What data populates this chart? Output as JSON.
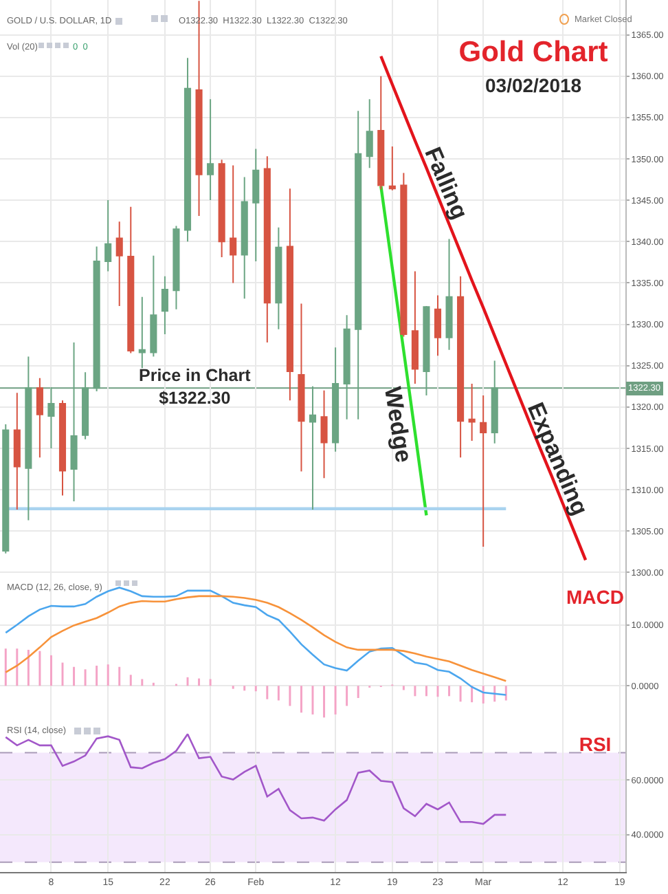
{
  "chart_data": [
    {
      "type": "candlestick",
      "title": "Gold Chart",
      "subtitle": "03/02/2018",
      "categories": [
        null,
        null,
        null,
        null,
        null,
        null,
        null,
        null,
        null,
        null,
        null,
        null,
        null,
        null,
        null,
        null,
        null,
        null,
        null,
        null,
        null,
        null,
        null,
        null,
        null,
        null,
        null,
        null,
        null,
        null,
        null,
        null,
        null,
        null,
        null,
        null,
        null,
        null,
        null,
        null,
        null,
        null,
        null,
        null,
        null,
        null,
        null,
        null,
        null,
        null,
        null,
        null,
        null,
        null,
        null
      ],
      "ohlc": [
        [
          1302.6,
          1317.9,
          1302.3,
          1317.2
        ],
        [
          1317.2,
          1321.7,
          1307.6,
          1312.8
        ],
        [
          1312.6,
          1326.1,
          1306.3,
          1322.3
        ],
        [
          1322.3,
          1323.5,
          1313.9,
          1319.1
        ],
        [
          1318.9,
          1322.4,
          1315.0,
          1320.4
        ],
        [
          1320.4,
          1320.8,
          1309.3,
          1312.3
        ],
        [
          1312.5,
          1327.8,
          1308.6,
          1316.5
        ],
        [
          1316.6,
          1324.2,
          1316.1,
          1322.3
        ],
        [
          1322.3,
          1339.4,
          1321.9,
          1337.6
        ],
        [
          1337.6,
          1345.0,
          1336.4,
          1339.7
        ],
        [
          1340.4,
          1342.4,
          1332.2,
          1338.3
        ],
        [
          1338.2,
          1344.2,
          1326.5,
          1326.8
        ],
        [
          1326.6,
          1333.3,
          1324.7,
          1326.9
        ],
        [
          1326.6,
          1338.3,
          1326.1,
          1331.1
        ],
        [
          1331.6,
          1335.8,
          1328.8,
          1334.2
        ],
        [
          1334.1,
          1341.9,
          1331.8,
          1341.5
        ],
        [
          1341.4,
          1362.2,
          1340.0,
          1358.5
        ],
        [
          1358.3,
          1369.1,
          1343.1,
          1348.1
        ],
        [
          1348.1,
          1357.2,
          1345.0,
          1349.4
        ],
        [
          1349.4,
          1349.9,
          1338.1,
          1340.0
        ],
        [
          1340.4,
          1349.2,
          1335.0,
          1338.4
        ],
        [
          1338.4,
          1347.8,
          1333.1,
          1344.8
        ],
        [
          1344.7,
          1351.2,
          1337.6,
          1348.6
        ],
        [
          1348.8,
          1350.3,
          1327.8,
          1332.6
        ],
        [
          1332.6,
          1341.7,
          1329.4,
          1339.3
        ],
        [
          1339.4,
          1346.4,
          1320.8,
          1324.3
        ],
        [
          1323.9,
          1332.5,
          1312.2,
          1318.3
        ],
        [
          1318.2,
          1322.5,
          1307.6,
          1319.0
        ],
        [
          1318.8,
          1322.0,
          1311.4,
          1315.7
        ],
        [
          1315.7,
          1327.2,
          1314.6,
          1322.8
        ],
        [
          1322.8,
          1331.1,
          1318.5,
          1329.4
        ],
        [
          1329.4,
          1355.8,
          1318.5,
          1350.6
        ],
        [
          1350.3,
          1357.2,
          1348.9,
          1353.3
        ],
        [
          1353.4,
          1360.0,
          1346.3,
          1346.8
        ],
        [
          1346.7,
          1351.5,
          1346.2,
          1346.4
        ],
        [
          1346.8,
          1348.3,
          1328.5,
          1328.8
        ],
        [
          1329.2,
          1336.4,
          1322.8,
          1324.6
        ],
        [
          1324.3,
          1332.2,
          1321.4,
          1332.1
        ],
        [
          1331.8,
          1333.5,
          1326.2,
          1328.4
        ],
        [
          1328.4,
          1340.3,
          1326.9,
          1333.3
        ],
        [
          1333.3,
          1335.8,
          1313.9,
          1318.3
        ],
        [
          1318.5,
          1322.8,
          1315.9,
          1318.2
        ],
        [
          1318.1,
          1321.4,
          1303.1,
          1316.9
        ],
        [
          1316.9,
          1325.6,
          1315.6,
          1322.3
        ],
        null,
        null,
        null,
        null,
        null,
        null,
        null,
        null,
        null,
        null,
        null
      ],
      "colors": [
        "#6ba583",
        "#d75442",
        "#6ba583",
        "#d75442",
        "#6ba583",
        "#d75442",
        "#6ba583",
        "#6ba583",
        "#6ba583",
        "#6ba583",
        "#d75442",
        "#d75442",
        "#6ba583",
        "#6ba583",
        "#6ba583",
        "#6ba583",
        "#6ba583",
        "#d75442",
        "#6ba583",
        "#d75442",
        "#d75442",
        "#6ba583",
        "#6ba583",
        "#d75442",
        "#6ba583",
        "#d75442",
        "#d75442",
        "#6ba583",
        "#d75442",
        "#6ba583",
        "#6ba583",
        "#6ba583",
        "#6ba583",
        "#d75442",
        "#d75442",
        "#d75442",
        "#d75442",
        "#6ba583",
        "#d75442",
        "#6ba583",
        "#d75442",
        "#d75442",
        "#d75442",
        "#6ba583",
        null,
        null,
        null,
        null,
        null,
        null,
        null,
        null,
        null,
        null,
        null
      ],
      "series": [
        {
          "type": "line",
          "color": "#e3141c",
          "values": [
            null,
            null,
            null,
            null,
            null,
            null,
            null,
            null,
            null,
            null,
            null,
            null,
            null,
            null,
            null,
            null,
            null,
            null,
            null,
            null,
            null,
            null,
            null,
            null,
            null,
            null,
            null,
            null,
            null,
            null,
            null,
            null,
            null,
            1362.4,
            1359.0,
            1355.6,
            1352.2,
            1348.9,
            1345.5,
            1342.1,
            1338.7,
            1335.3,
            1332.0,
            1328.6,
            1325.2,
            1321.8,
            1318.4,
            1315.0,
            1311.7,
            1308.3,
            1304.9,
            1301.5,
            null,
            null,
            null
          ]
        },
        {
          "type": "line",
          "color": "#2ee02e",
          "values": [
            null,
            null,
            null,
            null,
            null,
            null,
            null,
            null,
            null,
            null,
            null,
            null,
            null,
            null,
            null,
            null,
            null,
            null,
            null,
            null,
            null,
            null,
            null,
            null,
            null,
            null,
            null,
            null,
            null,
            null,
            null,
            null,
            null,
            1346.7,
            1336.8,
            1326.8,
            1316.9,
            1306.9,
            null,
            null,
            null,
            null,
            null,
            null,
            null,
            null,
            null,
            null,
            null,
            null,
            null,
            null,
            null,
            null,
            null
          ]
        },
        {
          "type": "line",
          "color": "#a9d3ef",
          "values": [
            1307.7,
            1307.7,
            1307.7,
            1307.7,
            1307.7,
            1307.7,
            1307.7,
            1307.7,
            1307.7,
            1307.7,
            1307.7,
            1307.7,
            1307.7,
            1307.7,
            1307.7,
            1307.7,
            1307.7,
            1307.7,
            1307.7,
            1307.7,
            1307.7,
            1307.7,
            1307.7,
            1307.7,
            1307.7,
            1307.7,
            1307.7,
            1307.7,
            1307.7,
            1307.7,
            1307.7,
            1307.7,
            1307.7,
            1307.7,
            1307.7,
            1307.7,
            1307.7,
            1307.7,
            1307.7,
            1307.7,
            1307.7,
            1307.7,
            1307.7,
            1307.7,
            1307.7,
            null,
            null,
            null,
            null,
            null,
            null,
            null,
            null,
            null,
            null
          ]
        }
      ],
      "ref_lines": [
        {
          "axis": "y",
          "value": 1322.3,
          "label": "1322.30",
          "color": "#6f9f82"
        }
      ],
      "annotations": [
        "Price in Chart\n$1322.30",
        "Falling",
        "Expanding",
        "Wedge",
        "GOLD / U.S. DOLLAR, 1D",
        "O1322.30  H1322.30  L1322.30  C1322.30",
        "Vol (20)",
        "0  0",
        "Market Closed"
      ],
      "ylim": [
        1299.2,
        1369.2
      ],
      "yticks": [
        {
          "value": 1300,
          "label": "1300.00"
        },
        {
          "value": 1305,
          "label": "1305.00"
        },
        {
          "value": 1310,
          "label": "1310.00"
        },
        {
          "value": 1315,
          "label": "1315.00"
        },
        {
          "value": 1320,
          "label": "1320.00"
        },
        {
          "value": 1325,
          "label": "1325.00"
        },
        {
          "value": 1330,
          "label": "1330.00"
        },
        {
          "value": 1335,
          "label": "1335.00"
        },
        {
          "value": 1340,
          "label": "1340.00"
        },
        {
          "value": 1345,
          "label": "1345.00"
        },
        {
          "value": 1350,
          "label": "1350.00"
        },
        {
          "value": 1355,
          "label": "1355.00"
        },
        {
          "value": 1360,
          "label": "1360.00"
        },
        {
          "value": 1365,
          "label": "1365.00"
        }
      ],
      "grid": true,
      "tick_labels": "y"
    },
    {
      "type": "line",
      "title": "MACD",
      "categories": [
        null,
        null,
        null,
        null,
        null,
        null,
        null,
        null,
        null,
        null,
        null,
        null,
        null,
        null,
        null,
        null,
        null,
        null,
        null,
        null,
        null,
        null,
        null,
        null,
        null,
        null,
        null,
        null,
        null,
        null,
        null,
        null,
        null,
        null,
        null,
        null,
        null,
        null,
        null,
        null,
        null,
        null,
        null,
        null,
        null,
        null,
        null,
        null,
        null,
        null,
        null,
        null,
        null,
        null,
        null
      ],
      "series": [
        {
          "type": "bar",
          "color": "#f4a3c6",
          "values": [
            6.1,
            6.1,
            5.9,
            5.7,
            5.0,
            3.8,
            3.1,
            2.7,
            3.3,
            3.5,
            3.1,
            1.8,
            1.1,
            0.5,
            null,
            0.3,
            1.4,
            1.2,
            1.1,
            null,
            -0.5,
            -0.8,
            -0.9,
            -2.2,
            -2.4,
            -3.3,
            -4.4,
            -4.7,
            -5.2,
            -4.7,
            -3.3,
            -2.0,
            -0.3,
            -0.2,
            0.2,
            -0.7,
            -1.7,
            -1.7,
            -1.8,
            -1.7,
            -2.6,
            -2.7,
            -2.9,
            -2.6,
            -2.4,
            null,
            null,
            null,
            null,
            null,
            null,
            null,
            null,
            null,
            null
          ]
        },
        {
          "type": "line",
          "color": "#4ba6ee",
          "values": [
            8.7,
            10.0,
            11.4,
            12.5,
            13.1,
            13.0,
            13.0,
            13.4,
            14.6,
            15.5,
            16.1,
            15.5,
            14.7,
            14.6,
            14.6,
            14.7,
            15.6,
            15.6,
            15.6,
            14.7,
            13.6,
            13.2,
            12.9,
            11.6,
            10.8,
            8.9,
            6.8,
            5.1,
            3.5,
            2.9,
            2.5,
            4.1,
            5.6,
            6.1,
            6.2,
            5.0,
            3.8,
            3.5,
            2.6,
            2.3,
            1.2,
            -0.2,
            -1.1,
            -1.3,
            -1.5,
            null,
            null,
            null,
            null,
            null,
            null,
            null,
            null,
            null,
            null
          ]
        },
        {
          "type": "line",
          "color": "#f7923a",
          "values": [
            2.2,
            3.3,
            4.7,
            6.3,
            8.0,
            9.0,
            9.9,
            10.5,
            11.1,
            12.0,
            13.0,
            13.6,
            13.9,
            13.8,
            13.8,
            14.2,
            14.5,
            14.7,
            14.7,
            14.7,
            14.6,
            14.4,
            14.1,
            13.6,
            12.9,
            11.9,
            10.8,
            9.6,
            8.3,
            7.2,
            6.3,
            5.9,
            5.9,
            5.9,
            5.9,
            5.7,
            5.3,
            4.8,
            4.4,
            4.0,
            3.3,
            2.6,
            2.0,
            1.4,
            0.8,
            null,
            null,
            null,
            null,
            null,
            null,
            null,
            null,
            null,
            null
          ]
        }
      ],
      "annotations": [
        "MACD (12, 26, close, 9)"
      ],
      "ylim": [
        -6.4,
        17.5
      ],
      "yticks": [
        {
          "value": 0,
          "label": "0.0000"
        },
        {
          "value": 10,
          "label": "10.0000"
        }
      ],
      "grid": true,
      "tick_labels": "y"
    },
    {
      "type": "line",
      "title": "RSI",
      "categories": [
        null,
        null,
        null,
        null,
        "8",
        null,
        null,
        null,
        null,
        "15",
        null,
        null,
        null,
        null,
        "22",
        null,
        null,
        null,
        "26",
        null,
        null,
        null,
        "Feb",
        null,
        null,
        null,
        null,
        null,
        null,
        "12",
        null,
        null,
        null,
        null,
        "19",
        null,
        null,
        null,
        "23",
        null,
        null,
        null,
        "Mar",
        null,
        null,
        null,
        null,
        null,
        null,
        "12",
        null,
        null,
        null,
        null,
        "19"
      ],
      "color": "#a257c9",
      "values": [
        75.7,
        72.7,
        74.7,
        72.7,
        72.7,
        65.2,
        66.8,
        69.0,
        75.2,
        76.0,
        74.7,
        64.7,
        64.3,
        66.3,
        67.7,
        70.7,
        76.8,
        68.0,
        68.5,
        61.3,
        60.2,
        63.0,
        65.2,
        54.0,
        56.8,
        49.0,
        46.0,
        46.3,
        45.2,
        49.3,
        52.7,
        62.7,
        63.5,
        59.7,
        59.3,
        49.7,
        46.8,
        51.3,
        49.3,
        51.8,
        44.7,
        44.7,
        44.0,
        47.3,
        47.3,
        null,
        null,
        null,
        null,
        null,
        null,
        null,
        null,
        null,
        null
      ],
      "ref_lines": [
        {
          "axis": "y",
          "value": 70,
          "color": "#a99bb8",
          "line_style": "dashed"
        },
        {
          "axis": "y",
          "value": 30,
          "color": "#a99bb8",
          "line_style": "dashed"
        }
      ],
      "bands": [
        {
          "axis": "y",
          "from": 30,
          "to": 70,
          "color": "#f4e8fc"
        }
      ],
      "annotations": [
        "RSI (14, close)"
      ],
      "ylim": [
        26.4,
        80.2
      ],
      "yticks": [
        {
          "value": 40,
          "label": "40.0000"
        },
        {
          "value": 60,
          "label": "60.0000"
        }
      ],
      "grid": true
    }
  ]
}
